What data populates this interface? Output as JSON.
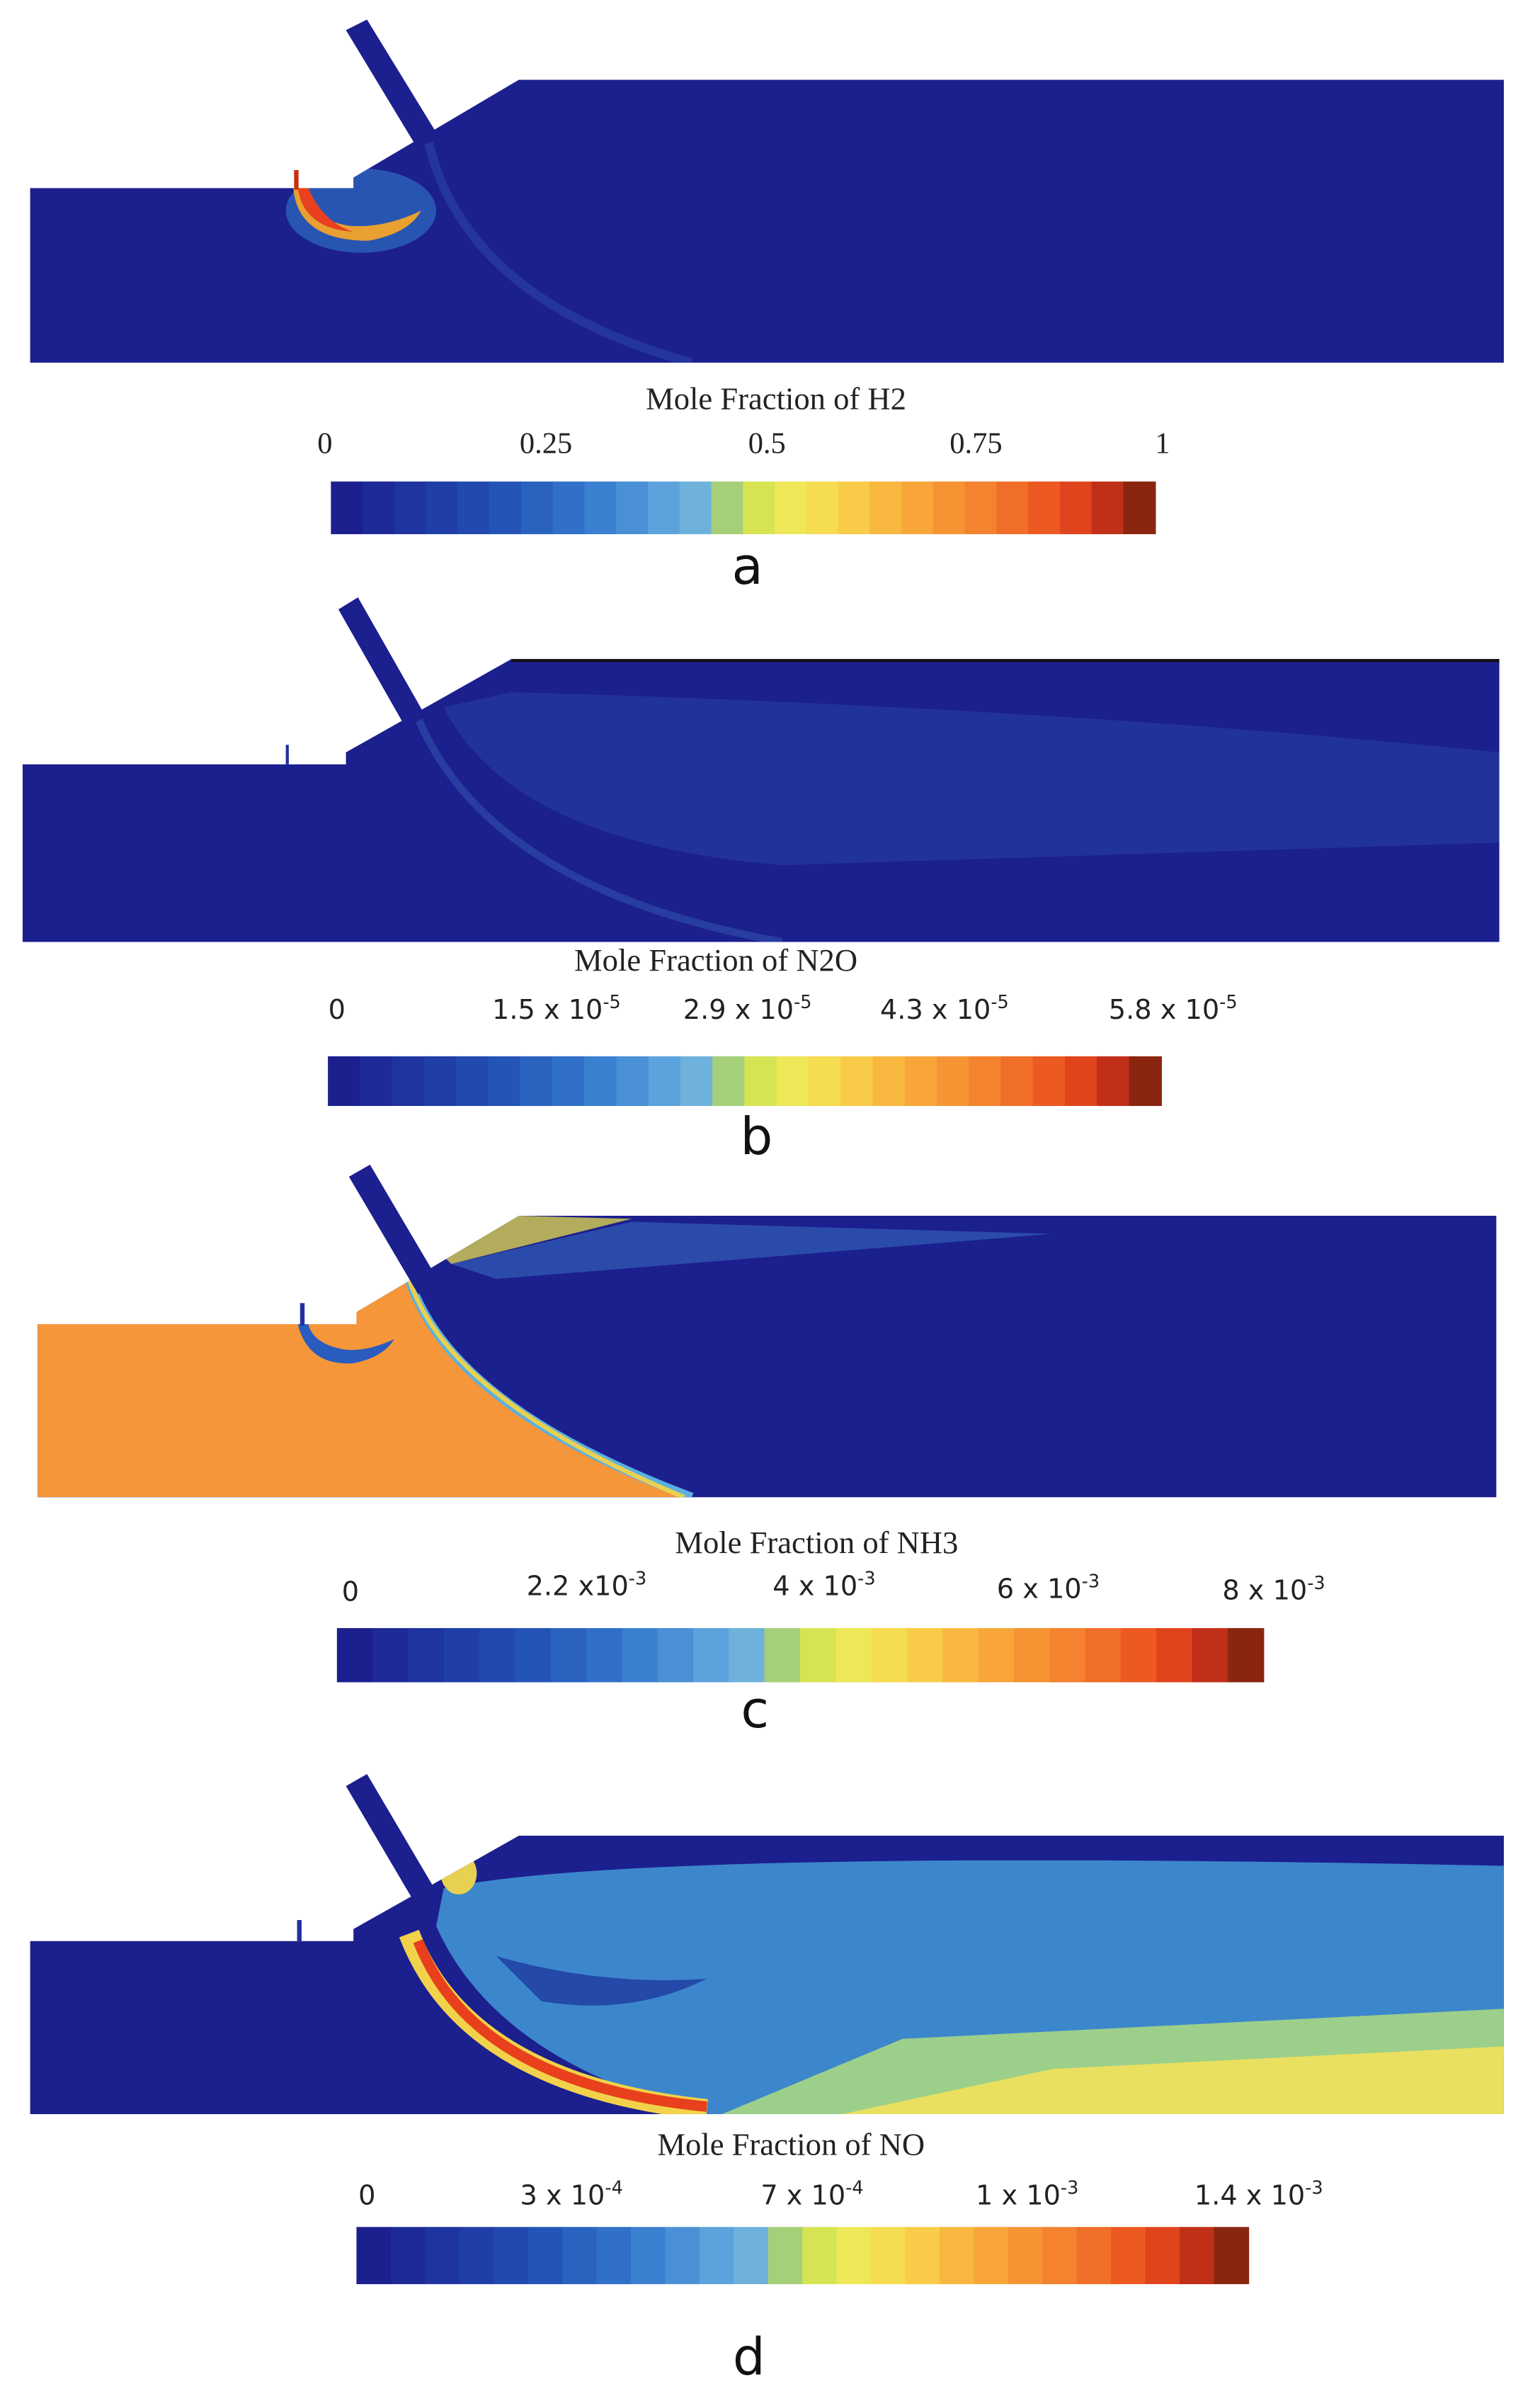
{
  "panels": [
    {
      "title": "Mole Fraction of H2",
      "ticks": [
        {
          "text": "0"
        },
        {
          "text": "0.25"
        },
        {
          "text": "0.5"
        },
        {
          "text": "0.75"
        },
        {
          "text": "1"
        }
      ],
      "label": "a"
    },
    {
      "title": "Mole Fraction of N2O",
      "ticks": [
        {
          "text": "0"
        },
        {
          "text": "1.5 x 10",
          "exponent": "-5"
        },
        {
          "text": "2.9 x 10",
          "exponent": "-5"
        },
        {
          "text": "4.3 x 10",
          "exponent": "-5"
        },
        {
          "text": "5.8 x 10",
          "exponent": "-5"
        }
      ],
      "label": "b"
    },
    {
      "title": "Mole Fraction of NH3",
      "ticks": [
        {
          "text": "0"
        },
        {
          "text": "2.2 x10",
          "exponent": "-3"
        },
        {
          "text": "4 x 10",
          "exponent": "-3"
        },
        {
          "text": "6 x 10",
          "exponent": "-3"
        },
        {
          "text": "8 x 10",
          "exponent": "-3"
        }
      ],
      "label": "c"
    },
    {
      "title": "Mole Fraction of NO",
      "ticks": [
        {
          "text": "0"
        },
        {
          "text": "3 x 10",
          "exponent": "-4"
        },
        {
          "text": "7 x 10",
          "exponent": "-4"
        },
        {
          "text": "1 x 10",
          "exponent": "-3"
        },
        {
          "text": "1.4 x 10",
          "exponent": "-3"
        }
      ],
      "label": "d"
    }
  ]
}
